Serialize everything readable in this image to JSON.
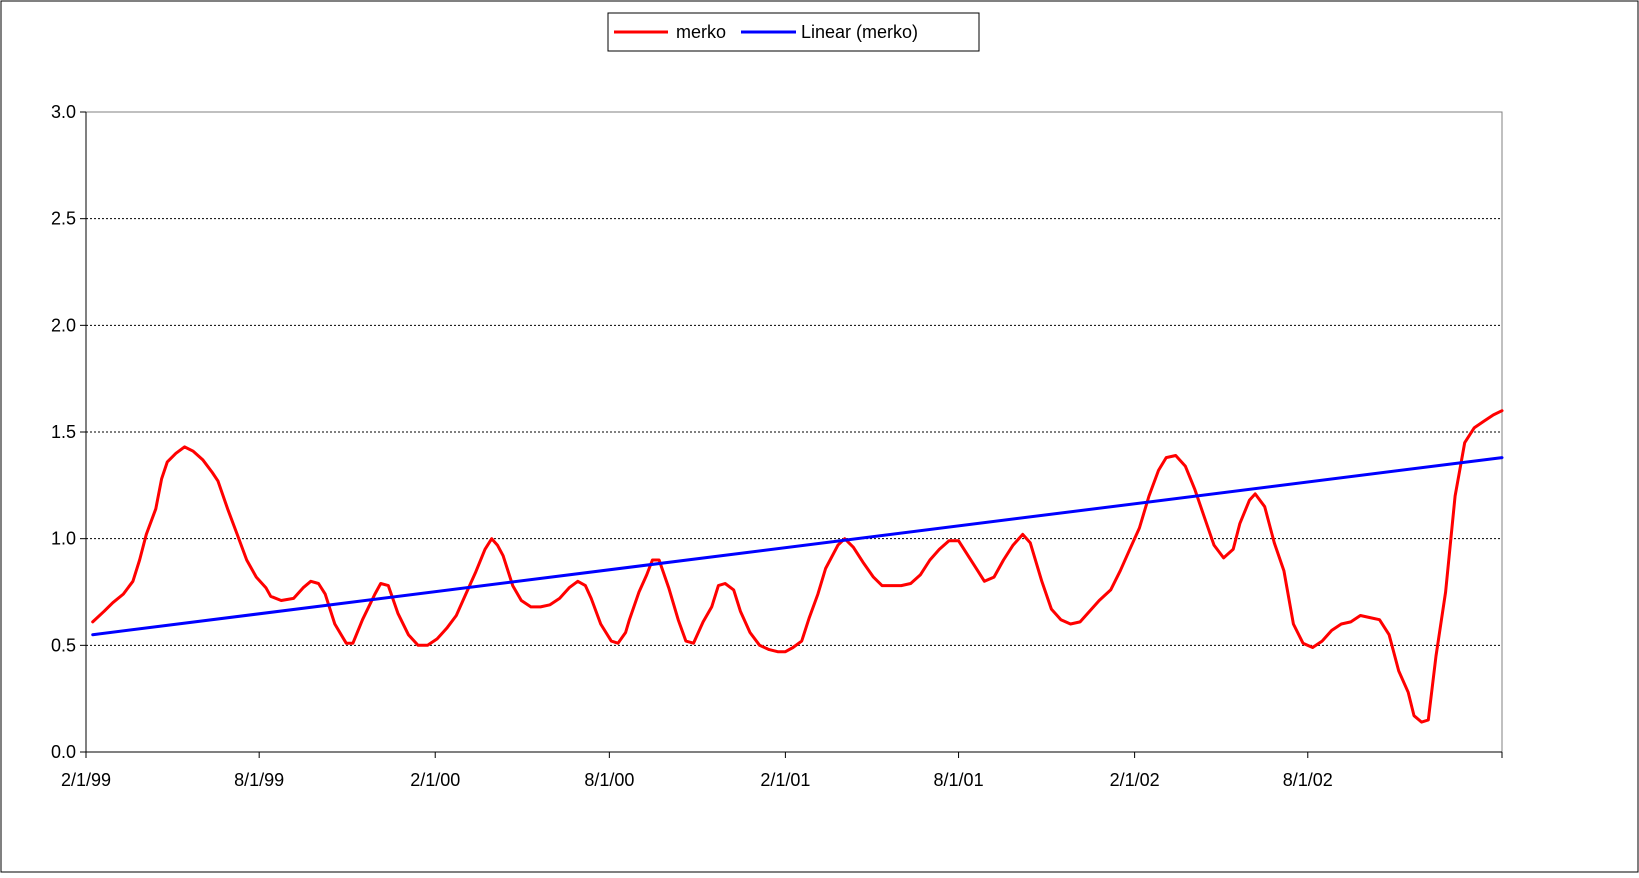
{
  "chart_data": {
    "type": "line",
    "x_type": "date",
    "x_tick_labels": [
      "2/1/99",
      "8/1/99",
      "2/1/00",
      "8/1/00",
      "2/1/01",
      "8/1/01",
      "2/1/02",
      "8/1/02"
    ],
    "x_ticks": [
      "1999-02-01",
      "1999-08-01",
      "2000-02-01",
      "2000-08-01",
      "2001-02-01",
      "2001-08-01",
      "2002-02-01",
      "2002-08-01"
    ],
    "xlim": [
      "1999-02-01",
      "2003-02-20"
    ],
    "ylim": [
      0,
      3
    ],
    "y_ticks": [
      0,
      0.5,
      1,
      1.5,
      2,
      2.5,
      3
    ],
    "y_tick_labels": [
      "0.0",
      "0.5",
      "1.0",
      "1.5",
      "2.0",
      "2.5",
      "3.0"
    ],
    "grid": "horizontal",
    "legend": "top-center",
    "title": "",
    "xlabel": "",
    "ylabel": "",
    "series": [
      {
        "name": "merko",
        "color": "#ff0000",
        "points": [
          [
            "1999-02-08",
            0.61
          ],
          [
            "1999-02-20",
            0.66
          ],
          [
            "1999-03-01",
            0.7
          ],
          [
            "1999-03-12",
            0.74
          ],
          [
            "1999-03-22",
            0.8
          ],
          [
            "1999-03-29",
            0.9
          ],
          [
            "1999-04-05",
            1.02
          ],
          [
            "1999-04-15",
            1.14
          ],
          [
            "1999-04-21",
            1.28
          ],
          [
            "1999-04-27",
            1.36
          ],
          [
            "1999-05-06",
            1.4
          ],
          [
            "1999-05-15",
            1.43
          ],
          [
            "1999-05-24",
            1.41
          ],
          [
            "1999-06-03",
            1.37
          ],
          [
            "1999-06-13",
            1.31
          ],
          [
            "1999-06-19",
            1.27
          ],
          [
            "1999-06-29",
            1.14
          ],
          [
            "1999-07-09",
            1.02
          ],
          [
            "1999-07-19",
            0.9
          ],
          [
            "1999-07-29",
            0.82
          ],
          [
            "1999-08-08",
            0.77
          ],
          [
            "1999-08-13",
            0.73
          ],
          [
            "1999-08-24",
            0.71
          ],
          [
            "1999-09-06",
            0.72
          ],
          [
            "1999-09-16",
            0.77
          ],
          [
            "1999-09-24",
            0.8
          ],
          [
            "1999-10-02",
            0.79
          ],
          [
            "1999-10-09",
            0.74
          ],
          [
            "1999-10-19",
            0.6
          ],
          [
            "1999-10-31",
            0.51
          ],
          [
            "1999-11-07",
            0.51
          ],
          [
            "1999-11-17",
            0.62
          ],
          [
            "1999-11-30",
            0.74
          ],
          [
            "1999-12-06",
            0.79
          ],
          [
            "1999-12-14",
            0.78
          ],
          [
            "1999-12-24",
            0.65
          ],
          [
            "2000-01-04",
            0.55
          ],
          [
            "2000-01-14",
            0.5
          ],
          [
            "2000-01-24",
            0.5
          ],
          [
            "2000-02-03",
            0.53
          ],
          [
            "2000-02-13",
            0.58
          ],
          [
            "2000-02-23",
            0.64
          ],
          [
            "2000-03-04",
            0.74
          ],
          [
            "2000-03-14",
            0.84
          ],
          [
            "2000-03-24",
            0.95
          ],
          [
            "2000-03-31",
            1.0
          ],
          [
            "2000-04-06",
            0.97
          ],
          [
            "2000-04-12",
            0.92
          ],
          [
            "2000-04-22",
            0.78
          ],
          [
            "2000-05-01",
            0.71
          ],
          [
            "2000-05-11",
            0.68
          ],
          [
            "2000-05-21",
            0.68
          ],
          [
            "2000-05-31",
            0.69
          ],
          [
            "2000-06-10",
            0.72
          ],
          [
            "2000-06-20",
            0.77
          ],
          [
            "2000-06-29",
            0.8
          ],
          [
            "2000-07-07",
            0.78
          ],
          [
            "2000-07-13",
            0.72
          ],
          [
            "2000-07-23",
            0.6
          ],
          [
            "2000-08-03",
            0.52
          ],
          [
            "2000-08-10",
            0.51
          ],
          [
            "2000-08-18",
            0.56
          ],
          [
            "2000-08-22",
            0.62
          ],
          [
            "2000-09-01",
            0.75
          ],
          [
            "2000-09-09",
            0.83
          ],
          [
            "2000-09-15",
            0.9
          ],
          [
            "2000-09-22",
            0.9
          ],
          [
            "2000-10-02",
            0.77
          ],
          [
            "2000-10-12",
            0.62
          ],
          [
            "2000-10-20",
            0.52
          ],
          [
            "2000-10-28",
            0.51
          ],
          [
            "2000-11-07",
            0.61
          ],
          [
            "2000-11-16",
            0.68
          ],
          [
            "2000-11-23",
            0.78
          ],
          [
            "2000-11-30",
            0.79
          ],
          [
            "2000-12-09",
            0.76
          ],
          [
            "2000-12-16",
            0.66
          ],
          [
            "2000-12-26",
            0.56
          ],
          [
            "2001-01-05",
            0.5
          ],
          [
            "2001-01-15",
            0.48
          ],
          [
            "2001-01-24",
            0.47
          ],
          [
            "2001-02-01",
            0.47
          ],
          [
            "2001-02-09",
            0.49
          ],
          [
            "2001-02-18",
            0.52
          ],
          [
            "2001-02-26",
            0.63
          ],
          [
            "2001-03-07",
            0.74
          ],
          [
            "2001-03-15",
            0.86
          ],
          [
            "2001-03-28",
            0.97
          ],
          [
            "2001-04-04",
            1.0
          ],
          [
            "2001-04-13",
            0.96
          ],
          [
            "2001-04-23",
            0.89
          ],
          [
            "2001-05-04",
            0.82
          ],
          [
            "2001-05-13",
            0.78
          ],
          [
            "2001-05-23",
            0.78
          ],
          [
            "2001-06-02",
            0.78
          ],
          [
            "2001-06-12",
            0.79
          ],
          [
            "2001-06-22",
            0.83
          ],
          [
            "2001-07-02",
            0.9
          ],
          [
            "2001-07-12",
            0.95
          ],
          [
            "2001-07-22",
            0.99
          ],
          [
            "2001-08-01",
            0.99
          ],
          [
            "2001-08-11",
            0.92
          ],
          [
            "2001-08-21",
            0.85
          ],
          [
            "2001-08-28",
            0.8
          ],
          [
            "2001-09-07",
            0.82
          ],
          [
            "2001-09-17",
            0.9
          ],
          [
            "2001-09-27",
            0.97
          ],
          [
            "2001-10-07",
            1.02
          ],
          [
            "2001-10-15",
            0.98
          ],
          [
            "2001-10-27",
            0.8
          ],
          [
            "2001-11-06",
            0.67
          ],
          [
            "2001-11-16",
            0.62
          ],
          [
            "2001-11-26",
            0.6
          ],
          [
            "2001-12-06",
            0.61
          ],
          [
            "2001-12-16",
            0.66
          ],
          [
            "2001-12-26",
            0.71
          ],
          [
            "2002-01-07",
            0.76
          ],
          [
            "2002-01-17",
            0.85
          ],
          [
            "2002-01-27",
            0.95
          ],
          [
            "2002-02-06",
            1.05
          ],
          [
            "2002-02-16",
            1.2
          ],
          [
            "2002-02-26",
            1.32
          ],
          [
            "2002-03-06",
            1.38
          ],
          [
            "2002-03-16",
            1.39
          ],
          [
            "2002-03-26",
            1.34
          ],
          [
            "2002-04-05",
            1.23
          ],
          [
            "2002-04-15",
            1.1
          ],
          [
            "2002-04-25",
            0.97
          ],
          [
            "2002-05-05",
            0.91
          ],
          [
            "2002-05-15",
            0.95
          ],
          [
            "2002-05-22",
            1.07
          ],
          [
            "2002-06-01",
            1.18
          ],
          [
            "2002-06-07",
            1.21
          ],
          [
            "2002-06-17",
            1.15
          ],
          [
            "2002-06-27",
            0.98
          ],
          [
            "2002-07-07",
            0.85
          ],
          [
            "2002-07-17",
            0.6
          ],
          [
            "2002-07-27",
            0.51
          ],
          [
            "2002-08-06",
            0.49
          ],
          [
            "2002-08-16",
            0.52
          ],
          [
            "2002-08-26",
            0.57
          ],
          [
            "2002-09-05",
            0.6
          ],
          [
            "2002-09-15",
            0.61
          ],
          [
            "2002-09-25",
            0.64
          ],
          [
            "2002-10-05",
            0.63
          ],
          [
            "2002-10-15",
            0.62
          ],
          [
            "2002-10-25",
            0.55
          ],
          [
            "2002-11-04",
            0.38
          ],
          [
            "2002-11-14",
            0.28
          ],
          [
            "2002-11-20",
            0.17
          ],
          [
            "2002-11-28",
            0.14
          ],
          [
            "2002-12-05",
            0.15
          ],
          [
            "2002-12-13",
            0.45
          ],
          [
            "2002-12-23",
            0.75
          ],
          [
            "2003-01-02",
            1.2
          ],
          [
            "2003-01-12",
            1.45
          ],
          [
            "2003-01-22",
            1.52
          ],
          [
            "2003-02-01",
            1.55
          ],
          [
            "2003-02-11",
            1.58
          ],
          [
            "2003-02-20",
            1.6
          ]
        ]
      },
      {
        "name": "Linear (merko)",
        "color": "#0000ff",
        "points": [
          [
            "1999-02-08",
            0.55
          ],
          [
            "2003-02-20",
            1.38
          ]
        ]
      }
    ]
  }
}
